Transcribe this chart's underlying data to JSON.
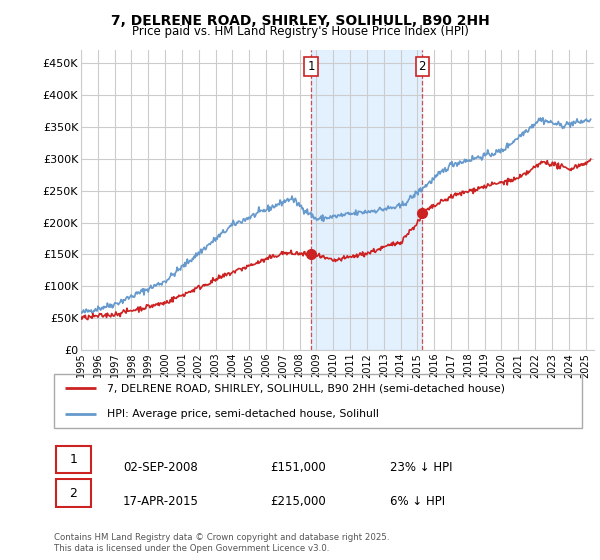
{
  "title": "7, DELRENE ROAD, SHIRLEY, SOLIHULL, B90 2HH",
  "subtitle": "Price paid vs. HM Land Registry's House Price Index (HPI)",
  "ylabel_ticks": [
    "£0",
    "£50K",
    "£100K",
    "£150K",
    "£200K",
    "£250K",
    "£300K",
    "£350K",
    "£400K",
    "£450K"
  ],
  "ytick_values": [
    0,
    50000,
    100000,
    150000,
    200000,
    250000,
    300000,
    350000,
    400000,
    450000
  ],
  "ylim": [
    0,
    470000
  ],
  "xlim_start": 1995.0,
  "xlim_end": 2025.5,
  "hpi_color": "#6699cc",
  "price_color": "#cc2222",
  "sale1_x": 2008.67,
  "sale1_y": 151000,
  "sale2_x": 2015.29,
  "sale2_y": 215000,
  "annotation1_label": "1",
  "annotation2_label": "2",
  "legend_line1": "7, DELRENE ROAD, SHIRLEY, SOLIHULL, B90 2HH (semi-detached house)",
  "legend_line2": "HPI: Average price, semi-detached house, Solihull",
  "table_row1": [
    "1",
    "02-SEP-2008",
    "£151,000",
    "23% ↓ HPI"
  ],
  "table_row2": [
    "2",
    "17-APR-2015",
    "£215,000",
    "6% ↓ HPI"
  ],
  "footnote": "Contains HM Land Registry data © Crown copyright and database right 2025.\nThis data is licensed under the Open Government Licence v3.0.",
  "bg_color": "#ffffff",
  "grid_color": "#cccccc",
  "shade_color": "#ddeeff"
}
